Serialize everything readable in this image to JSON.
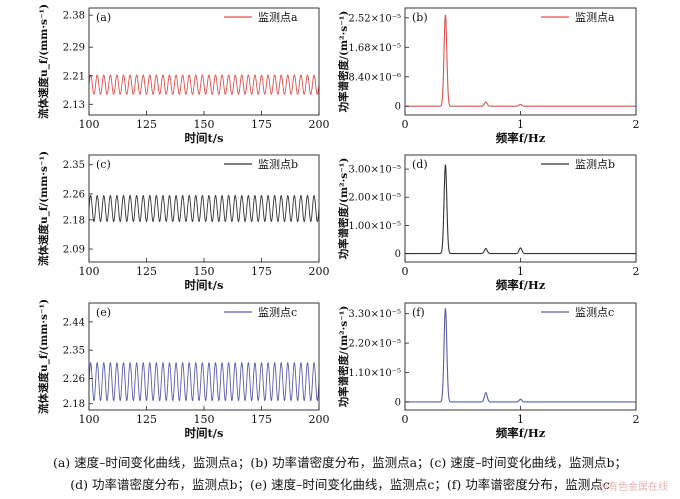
{
  "chart_data": [
    {
      "panel": "(a)",
      "type": "line",
      "xlabel": "时间t/s",
      "ylabel": "流体速度u_f/(mm·s⁻¹)",
      "xlim": [
        100,
        200
      ],
      "ylim": [
        2.1,
        2.4
      ],
      "xticks": [
        "100",
        "125",
        "150",
        "175",
        "200"
      ],
      "yticks": [
        "2.13",
        "2.21",
        "2.29",
        "2.38"
      ],
      "legend": "监测点a",
      "legend_position": "top-right",
      "color": "#d9534f",
      "signal": {
        "mean": 2.185,
        "amplitude": 0.027,
        "frequency_hz": 0.35
      }
    },
    {
      "panel": "(b)",
      "type": "line",
      "xlabel": "频率f/Hz",
      "ylabel": "功率谱密度/(m²·s⁻¹)",
      "xlim": [
        0,
        2
      ],
      "ylim": [
        -2.5e-06,
        2.8e-05
      ],
      "xticks": [
        "0",
        "1",
        "2"
      ],
      "yticks": [
        "0",
        "8.40×10⁻⁶",
        "1.68×10⁻⁵",
        "2.52×10⁻⁵"
      ],
      "legend": "监测点a",
      "legend_position": "top-right",
      "color": "#d9534f",
      "peaks": [
        {
          "f": 0.35,
          "psd": 2.6e-05
        },
        {
          "f": 0.7,
          "psd": 1.2e-06
        },
        {
          "f": 1.0,
          "psd": 5e-07
        }
      ]
    },
    {
      "panel": "(c)",
      "type": "line",
      "xlabel": "时间t/s",
      "ylabel": "流体速度u_f/(mm·s⁻¹)",
      "xlim": [
        100,
        200
      ],
      "ylim": [
        2.05,
        2.38
      ],
      "xticks": [
        "100",
        "125",
        "150",
        "175",
        "200"
      ],
      "yticks": [
        "2.09",
        "2.18",
        "2.26",
        "2.35"
      ],
      "legend": "监测点b",
      "legend_position": "top-right",
      "color": "#333333",
      "signal": {
        "mean": 2.215,
        "amplitude": 0.04,
        "frequency_hz": 0.35
      }
    },
    {
      "panel": "(d)",
      "type": "line",
      "xlabel": "频率f/Hz",
      "ylabel": "功率谱密度/(m²·s⁻¹)",
      "xlim": [
        0,
        2
      ],
      "ylim": [
        -3e-06,
        3.5e-05
      ],
      "xticks": [
        "0",
        "1",
        "2"
      ],
      "yticks": [
        "0",
        "1.00×10⁻⁵",
        "2.00×10⁻⁵",
        "3.00×10⁻⁵"
      ],
      "legend": "监测点b",
      "legend_position": "top-right",
      "color": "#333333",
      "peaks": [
        {
          "f": 0.35,
          "psd": 3.15e-05
        },
        {
          "f": 0.7,
          "psd": 1.8e-06
        },
        {
          "f": 1.0,
          "psd": 2e-06
        }
      ]
    },
    {
      "panel": "(e)",
      "type": "line",
      "xlabel": "时间t/s",
      "ylabel": "流体速度u_f/(mm·s⁻¹)",
      "xlim": [
        100,
        200
      ],
      "ylim": [
        2.16,
        2.5
      ],
      "xticks": [
        "100",
        "125",
        "150",
        "175",
        "200"
      ],
      "yticks": [
        "2.18",
        "2.26",
        "2.35",
        "2.44"
      ],
      "legend": "监测点c",
      "legend_position": "top-right",
      "color": "#5b5ea6",
      "signal": {
        "mean": 2.25,
        "amplitude": 0.06,
        "frequency_hz": 0.35
      }
    },
    {
      "panel": "(f)",
      "type": "line",
      "xlabel": "频率f/Hz",
      "ylabel": "功率谱密度/(m²·s⁻¹)",
      "xlim": [
        0,
        2
      ],
      "ylim": [
        -3e-06,
        3.7e-05
      ],
      "xticks": [
        "0",
        "1",
        "2"
      ],
      "yticks": [
        "0",
        "1.10×10⁻⁵",
        "2.20×10⁻⁵",
        "3.30×10⁻⁵"
      ],
      "legend": "监测点c",
      "legend_position": "top-right",
      "color": "#5b5ea6",
      "peaks": [
        {
          "f": 0.35,
          "psd": 3.5e-05
        },
        {
          "f": 0.7,
          "psd": 3.5e-06
        },
        {
          "f": 1.0,
          "psd": 1e-06
        }
      ]
    }
  ],
  "caption": {
    "line1": "(a) 速度–时间变化曲线，监测点a；(b) 功率谱密度分布，监测点a；(c) 速度–时间变化曲线，监测点b；",
    "line2": "(d) 功率谱密度分布，监测点b；(e) 速度–时间变化曲线，监测点c；(f) 功率谱密度分布，监测点c"
  },
  "watermark": "@有色金属在线"
}
